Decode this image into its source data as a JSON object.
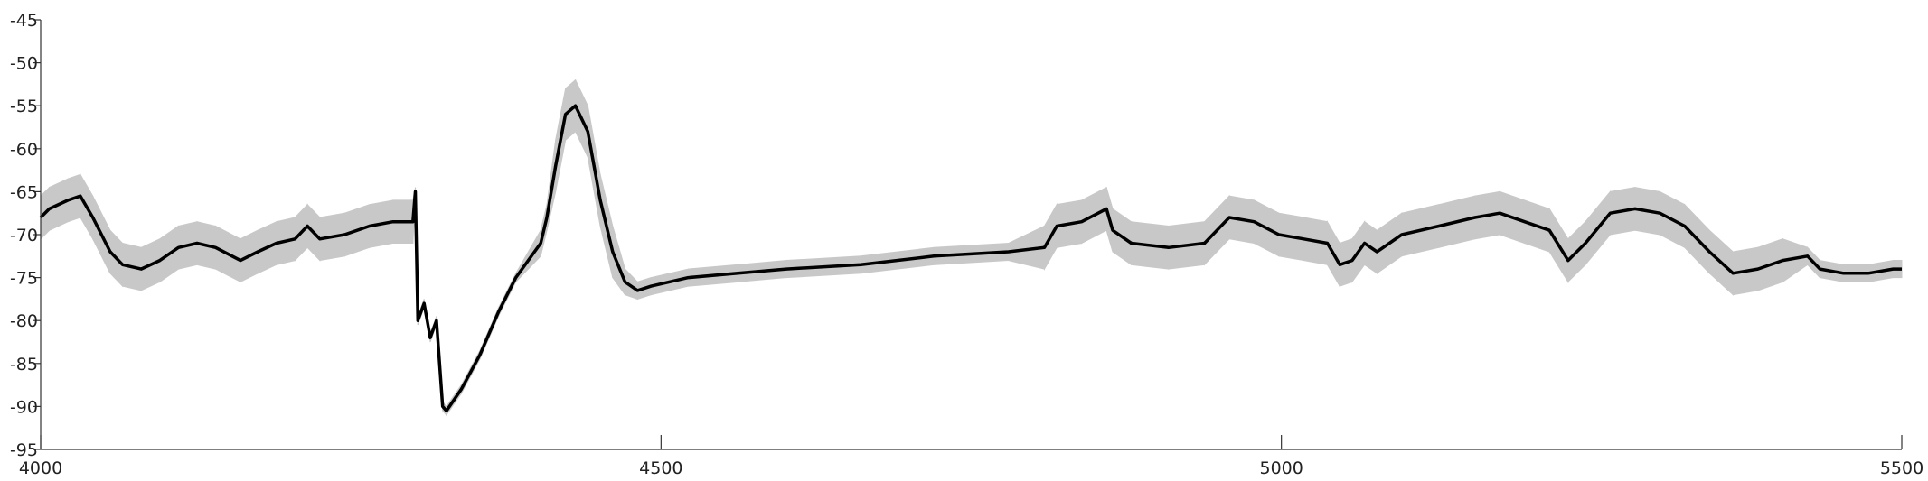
{
  "chart_data": {
    "type": "line",
    "x": [
      4000,
      4007,
      4022,
      4032,
      4042,
      4056,
      4066,
      4081,
      4096,
      4111,
      4126,
      4141,
      4161,
      4175,
      4190,
      4205,
      4215,
      4225,
      4245,
      4265,
      4284,
      4300,
      4302,
      4304,
      4309,
      4314,
      4319,
      4324,
      4327,
      4339,
      4354,
      4369,
      4383,
      4403,
      4408,
      4415,
      4423,
      4431,
      4441,
      4451,
      4461,
      4471,
      4481,
      4492,
      4522,
      4562,
      4601,
      4661,
      4720,
      4780,
      4809,
      4819,
      4839,
      4859,
      4864,
      4879,
      4909,
      4938,
      4958,
      4978,
      4998,
      5018,
      5037,
      5047,
      5057,
      5067,
      5077,
      5097,
      5127,
      5156,
      5176,
      5196,
      5216,
      5231,
      5245,
      5265,
      5285,
      5305,
      5325,
      5345,
      5364,
      5384,
      5404,
      5424,
      5434,
      5453,
      5473,
      5493,
      5500
    ],
    "values": [
      -68,
      -67,
      -66,
      -65.5,
      -68,
      -72,
      -73.5,
      -74,
      -73,
      -71.5,
      -71,
      -71.5,
      -73,
      -72,
      -71,
      -70.5,
      -69,
      -70.5,
      -70,
      -69,
      -68.5,
      -68.5,
      -65,
      -80,
      -78,
      -82,
      -80,
      -90,
      -90.5,
      -88,
      -84,
      -79,
      -75,
      -71,
      -68,
      -62,
      -56,
      -55,
      -58,
      -66,
      -72,
      -75.5,
      -76.5,
      -76,
      -75,
      -74.5,
      -74,
      -73.5,
      -72.5,
      -72,
      -71.5,
      -69,
      -68.5,
      -67,
      -69.5,
      -71,
      -71.5,
      -71,
      -68,
      -68.5,
      -70,
      -70.5,
      -71,
      -73.5,
      -73,
      -71,
      -72,
      -70,
      -69,
      -68,
      -67.5,
      -68.5,
      -69.5,
      -73,
      -71,
      -67.5,
      -67,
      -67.5,
      -69,
      -72,
      -74.5,
      -74,
      -73,
      -72.5,
      -74,
      -74.5,
      -74.5,
      -74,
      -74
    ],
    "band_upper": [
      -65.5,
      -64.5,
      -63.5,
      -63,
      -65.5,
      -69.5,
      -71,
      -71.5,
      -70.5,
      -69,
      -68.5,
      -69,
      -70.5,
      -69.5,
      -68.5,
      -68,
      -66.5,
      -68,
      -67.5,
      -66.5,
      -66,
      -66,
      -64.5,
      -79.5,
      -77.5,
      -81.5,
      -79.5,
      -89.5,
      -90,
      -87.5,
      -83.5,
      -78.5,
      -74.5,
      -69.5,
      -66.5,
      -59,
      -53,
      -52,
      -55,
      -63,
      -69,
      -74,
      -75.5,
      -75,
      -74,
      -73.5,
      -73,
      -72.5,
      -71.5,
      -71,
      -69,
      -66.5,
      -66,
      -64.5,
      -67,
      -68.5,
      -69,
      -68.5,
      -65.5,
      -66,
      -67.5,
      -68,
      -68.5,
      -71,
      -70.5,
      -68.5,
      -69.5,
      -67.5,
      -66.5,
      -65.5,
      -65,
      -66,
      -67,
      -70.5,
      -68.5,
      -65,
      -64.5,
      -65,
      -66.5,
      -69.5,
      -72,
      -71.5,
      -70.5,
      -71.5,
      -73,
      -73.5,
      -73.5,
      -73,
      -73
    ],
    "band_lower": [
      -70.5,
      -69.5,
      -68.5,
      -68,
      -70.5,
      -74.5,
      -76,
      -76.5,
      -75.5,
      -74,
      -73.5,
      -74,
      -75.5,
      -74.5,
      -73.5,
      -73,
      -71.5,
      -73,
      -72.5,
      -71.5,
      -71,
      -71,
      -65.5,
      -80.5,
      -78.5,
      -82.5,
      -80.5,
      -90.5,
      -91,
      -88.5,
      -84.5,
      -79.5,
      -75.5,
      -72.5,
      -69.5,
      -65,
      -59,
      -58,
      -61,
      -69,
      -75,
      -77,
      -77.5,
      -77,
      -76,
      -75.5,
      -75,
      -74.5,
      -73.5,
      -73,
      -74,
      -71.5,
      -71,
      -69.5,
      -72,
      -73.5,
      -74,
      -73.5,
      -70.5,
      -71,
      -72.5,
      -73,
      -73.5,
      -76,
      -75.5,
      -73.5,
      -74.5,
      -72.5,
      -71.5,
      -70.5,
      -70,
      -71,
      -72,
      -75.5,
      -73.5,
      -70,
      -69.5,
      -70,
      -71.5,
      -74.5,
      -77,
      -76.5,
      -75.5,
      -73.5,
      -75,
      -75.5,
      -75.5,
      -75,
      -75
    ],
    "color": "#000000",
    "band_color": "#c8c8c8",
    "xlim": [
      4000,
      5500
    ],
    "xticks": [
      4000,
      4500,
      5000,
      5500
    ],
    "ylim": [
      -95,
      -45
    ],
    "yticks": [
      -95,
      -90,
      -85,
      -80,
      -75,
      -70,
      -65,
      -60,
      -55,
      -50,
      -45
    ]
  }
}
